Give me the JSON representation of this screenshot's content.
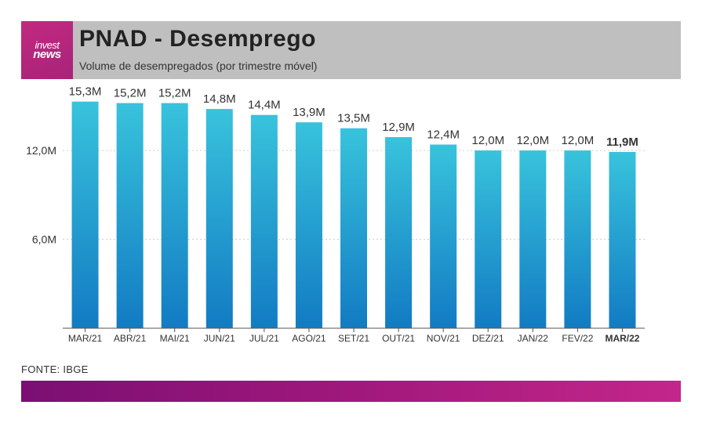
{
  "header": {
    "logo_line1": "invest",
    "logo_line2": "news",
    "title": "PNAD - Desemprego",
    "subtitle": "Volume de desempregados (por trimestre móvel)"
  },
  "footer": {
    "source": "FONTE: IBGE"
  },
  "colors": {
    "bar_top": "#38c3dc",
    "bar_bottom": "#127bc3",
    "header_bg": "#bfbfbf",
    "brand": "#c2297f"
  },
  "chart_data": {
    "type": "bar",
    "title": "PNAD - Desemprego",
    "subtitle": "Volume de desempregados (por trimestre móvel)",
    "xlabel": "",
    "ylabel": "",
    "ylim": [
      0,
      16.5
    ],
    "grid": true,
    "yticks": [
      {
        "value": 6.0,
        "label": "6,0M"
      },
      {
        "value": 12.0,
        "label": "12,0M"
      }
    ],
    "categories": [
      "MAR/21",
      "ABR/21",
      "MAI/21",
      "JUN/21",
      "JUL/21",
      "AGO/21",
      "SET/21",
      "OUT/21",
      "NOV/21",
      "DEZ/21",
      "JAN/22",
      "FEV/22",
      "MAR/22"
    ],
    "values": [
      15.3,
      15.2,
      15.2,
      14.8,
      14.4,
      13.9,
      13.5,
      12.9,
      12.4,
      12.0,
      12.0,
      12.0,
      11.9
    ],
    "value_labels": [
      "15,3M",
      "15,2M",
      "15,2M",
      "14,8M",
      "14,4M",
      "13,9M",
      "13,5M",
      "12,9M",
      "12,4M",
      "12,0M",
      "12,0M",
      "12,0M",
      "11,9M"
    ],
    "highlighted_index": 12
  }
}
